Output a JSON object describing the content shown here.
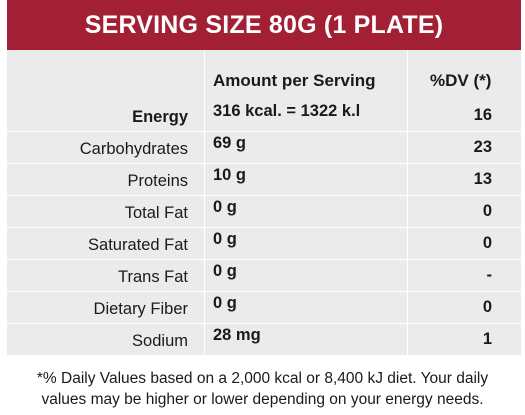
{
  "header": {
    "title": "SERVING SIZE 80G (1 PLATE)"
  },
  "columns": {
    "amount": "Amount per Serving",
    "dv": "%DV (*)"
  },
  "rows": [
    {
      "label": "Energy",
      "amount": "316 kcal. = 1322 k.l",
      "dv": "16"
    },
    {
      "label": "Carbohydrates",
      "amount": "69 g",
      "dv": "23"
    },
    {
      "label": "Proteins",
      "amount": "10 g",
      "dv": "13"
    },
    {
      "label": "Total Fat",
      "amount": "0 g",
      "dv": "0"
    },
    {
      "label": "Saturated Fat",
      "amount": "0 g",
      "dv": "0"
    },
    {
      "label": "Trans Fat",
      "amount": "0 g",
      "dv": "-"
    },
    {
      "label": "Dietary Fiber",
      "amount": "0 g",
      "dv": "0"
    },
    {
      "label": "Sodium",
      "amount": "28 mg",
      "dv": "1"
    }
  ],
  "footnote": {
    "line1": "*% Daily Values based on a 2,000 kcal or 8,400 kJ diet. Your daily",
    "line2": "values may be higher or lower depending on your energy needs."
  },
  "colors": {
    "header_bg": "#a21f34",
    "table_bg": "#ebebeb"
  }
}
